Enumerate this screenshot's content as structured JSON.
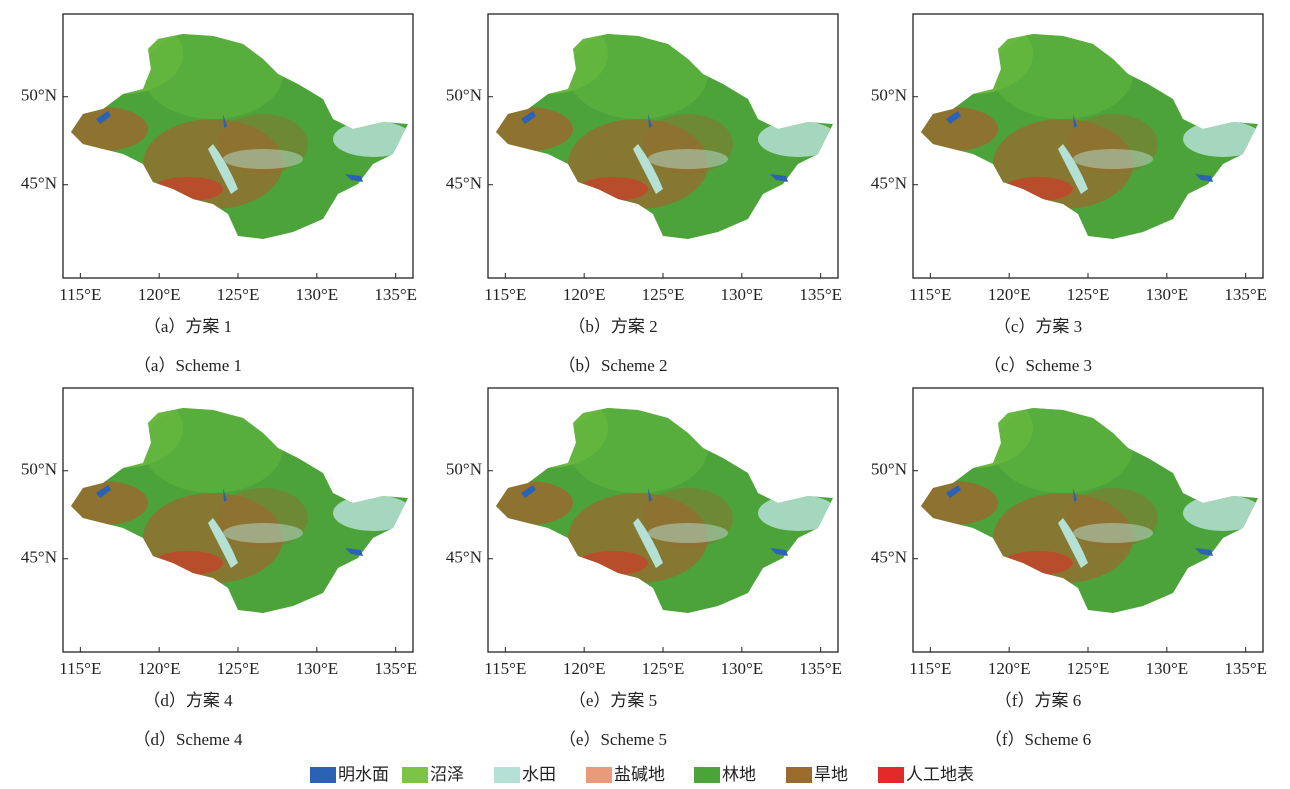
{
  "panels": [
    {
      "caption_zh": "（a）方案 1",
      "caption_en": "（a）Scheme 1"
    },
    {
      "caption_zh": "（b）方案 2",
      "caption_en": "（b）Scheme 2"
    },
    {
      "caption_zh": "（c）方案 3",
      "caption_en": "（c）Scheme 3"
    },
    {
      "caption_zh": "（d）方案 4",
      "caption_en": "（d）Scheme 4"
    },
    {
      "caption_zh": "（e）方案 5",
      "caption_en": "（e）Scheme 5"
    },
    {
      "caption_zh": "（f）方案 6",
      "caption_en": "（f）Scheme 6"
    }
  ],
  "axes": {
    "xlim": [
      113.9,
      136.1
    ],
    "ylim": [
      39.7,
      54.7
    ],
    "xticks": [
      {
        "value": 115,
        "label": "115°E"
      },
      {
        "value": 120,
        "label": "120°E"
      },
      {
        "value": 125,
        "label": "125°E"
      },
      {
        "value": 130,
        "label": "130°E"
      },
      {
        "value": 135,
        "label": "135°E"
      }
    ],
    "yticks": [
      {
        "value": 45,
        "label": "45°N"
      },
      {
        "value": 50,
        "label": "50°N"
      }
    ]
  },
  "legend": [
    {
      "name": "明水面",
      "color": "#2b62b5"
    },
    {
      "name": "沼泽",
      "color": "#7cc444"
    },
    {
      "name": "水田",
      "color": "#b4e0d6"
    },
    {
      "name": "盐碱地",
      "color": "#e99a7a"
    },
    {
      "name": "林地",
      "color": "#4ca33a"
    },
    {
      "name": "旱地",
      "color": "#9a6a2e"
    },
    {
      "name": "人工地表",
      "color": "#e22a2a"
    }
  ]
}
